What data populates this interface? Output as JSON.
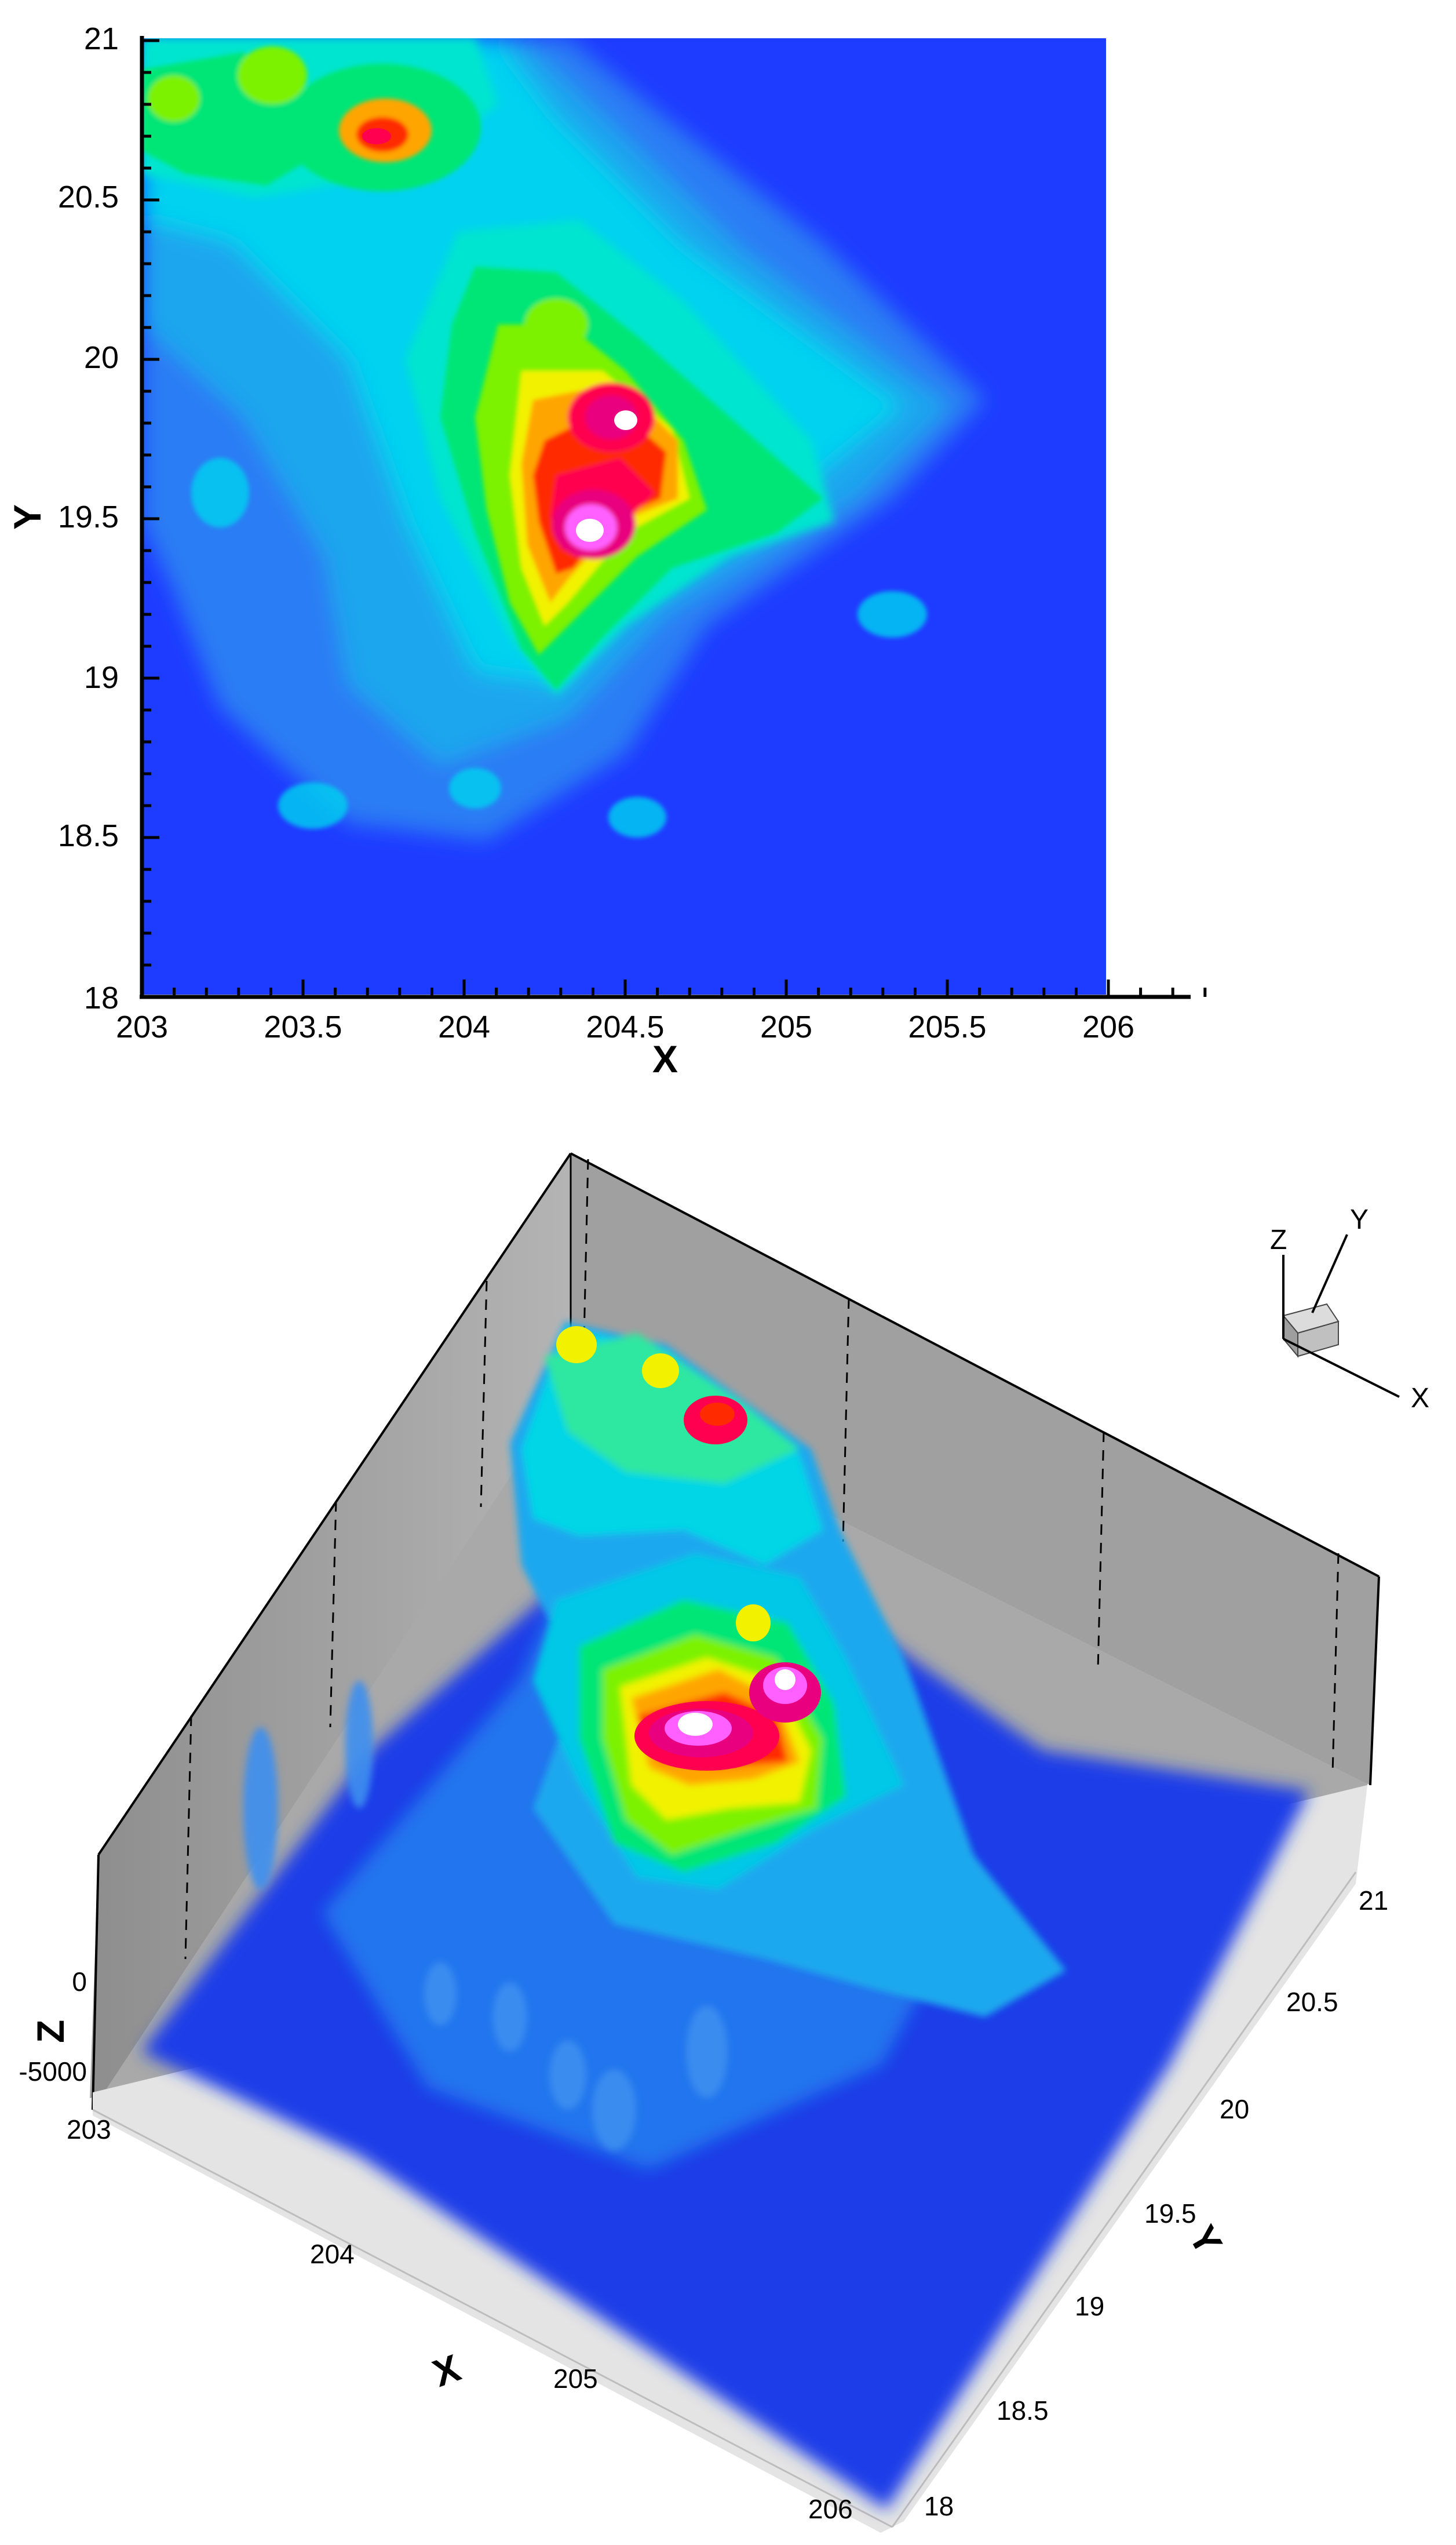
{
  "chart_data": [
    {
      "type": "heatmap",
      "view": "2D contour map",
      "xlabel": "X",
      "ylabel": "Y",
      "xlim": [
        203,
        206.3
      ],
      "ylim": [
        18,
        21
      ],
      "xticks": [
        "203",
        "203.5",
        "204",
        "204.5",
        "205",
        "205.5",
        "206"
      ],
      "yticks": [
        "18",
        "18.5",
        "19",
        "19.5",
        "20",
        "20.5",
        "21"
      ],
      "data_extent_x": [
        203,
        206.02
      ],
      "colormap": [
        "#1e2cff",
        "#1560f5",
        "#2a8cf2",
        "#00c8ff",
        "#00eadc",
        "#00e676",
        "#7cf200",
        "#f2f200",
        "#ffa500",
        "#ff2a00",
        "#ff0050",
        "#e8007e",
        "#ff60ff",
        "#ffffff"
      ],
      "peaks": [
        {
          "x": 204.42,
          "y": 19.42,
          "level": 1.0
        },
        {
          "x": 204.53,
          "y": 19.8,
          "level": 0.95
        },
        {
          "x": 203.75,
          "y": 20.7,
          "level": 0.66
        },
        {
          "x": 203.42,
          "y": 20.87,
          "level": 0.5
        },
        {
          "x": 203.07,
          "y": 20.82,
          "level": 0.48
        },
        {
          "x": 204.3,
          "y": 20.07,
          "level": 0.55
        }
      ]
    },
    {
      "type": "surface",
      "view": "3D surface",
      "xlabel": "X",
      "ylabel": "Y",
      "zlabel": "Z",
      "xticks": [
        "203",
        "204",
        "205",
        "206"
      ],
      "yticks": [
        "18",
        "18.5",
        "19",
        "19.5",
        "20",
        "20.5",
        "21"
      ],
      "zticks": [
        "0",
        "-5000"
      ],
      "orientation_axes": {
        "x": "X",
        "y": "Y",
        "z": "Z"
      }
    }
  ]
}
